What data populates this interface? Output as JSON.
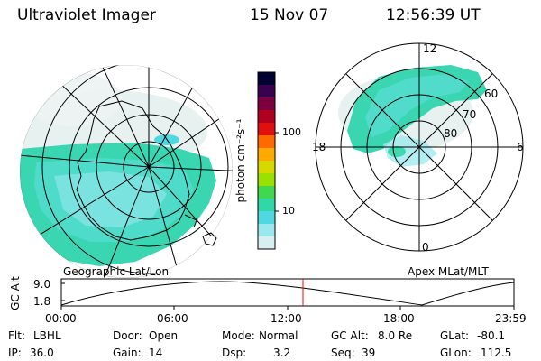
{
  "header": {
    "instrument": "Ultraviolet Imager",
    "date": "15 Nov 07",
    "time": "12:56:39 UT"
  },
  "left_panel": {
    "label": "Geographic Lat/Lon"
  },
  "right_panel": {
    "label": "Apex MLat/MLT",
    "mlt_labels": [
      "12",
      "18",
      "6",
      "0"
    ],
    "lat_labels": [
      "60",
      "70",
      "80"
    ]
  },
  "colorbar": {
    "unit_label": "photon cm⁻²s⁻¹",
    "ticks": [
      "100",
      "10"
    ],
    "colors": [
      "#000033",
      "#3a0050",
      "#7a0040",
      "#b00020",
      "#e01010",
      "#ff6a00",
      "#ffaa00",
      "#d8d800",
      "#9be000",
      "#40d850",
      "#30d8a8",
      "#50d8e0",
      "#9ae8ee",
      "#d8eef0"
    ]
  },
  "timeline": {
    "y_axis_label": "GC Alt",
    "y_ticks": [
      "9.0",
      "1.8"
    ],
    "x_ticks": [
      "00:00",
      "06:00",
      "12:00",
      "18:00",
      "23:59"
    ],
    "marker_color": "#ff0000"
  },
  "status": {
    "row1": [
      {
        "label": "Flt:",
        "value": "LBHL"
      },
      {
        "label": "Door:",
        "value": "Open"
      },
      {
        "label": "Mode:",
        "value": "Normal"
      },
      {
        "label": "GC Alt:",
        "value": "8.0 Re"
      },
      {
        "label": "GLat:",
        "value": "-80.1"
      }
    ],
    "row2": [
      {
        "label": "IP:",
        "value": "36.0"
      },
      {
        "label": "Gain:",
        "value": "14"
      },
      {
        "label": "Dsp:",
        "value": "3.2"
      },
      {
        "label": "Seq:",
        "value": "39"
      },
      {
        "label": "GLon:",
        "value": "112.5"
      }
    ]
  }
}
